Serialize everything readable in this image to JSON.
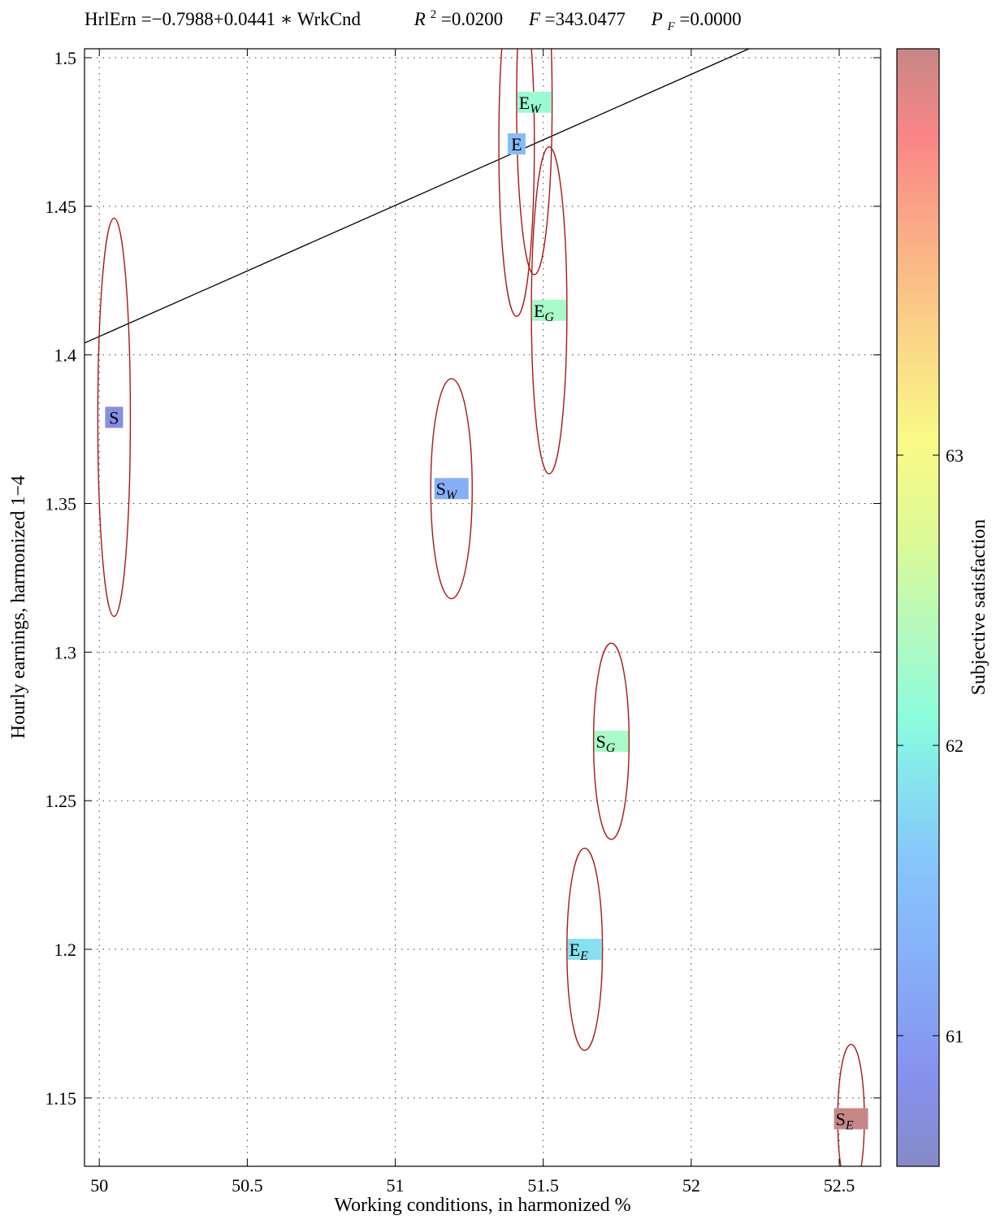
{
  "chart_data": {
    "type": "scatter",
    "title": "HrlErn =−0.7988+0.0441 ∗ WrkCnd        R² =0.0200    F =343.0477    P_F =0.0000",
    "title_parts": {
      "equation": "HrlErn =−0.7988+0.0441 ∗ WrkCnd",
      "r2_symbol": "R",
      "r2_sup": "2",
      "r2_value": " =0.0200",
      "f_symbol": "F",
      "f_value": " =343.0477",
      "pf_symbol": "P",
      "pf_sub": "F",
      "pf_value": " =0.0000"
    },
    "xlabel": "Working conditions, in harmonized %",
    "ylabel": "Hourly earnings, harmonized 1−4",
    "colorbar_label": "Subjective satisfaction",
    "xlim": [
      49.95,
      52.64
    ],
    "ylim": [
      1.127,
      1.503
    ],
    "x_ticks": [
      50,
      50.5,
      51,
      51.5,
      52,
      52.5
    ],
    "x_tick_labels": [
      "50",
      "50.5",
      "51",
      "51.5",
      "52",
      "52.5"
    ],
    "y_ticks": [
      1.15,
      1.2,
      1.25,
      1.3,
      1.35,
      1.4,
      1.45,
      1.5
    ],
    "y_tick_labels": [
      "1.15",
      "1.2",
      "1.25",
      "1.3",
      "1.35",
      "1.4",
      "1.45",
      "1.5"
    ],
    "colorbar_lim": [
      60.55,
      64.4
    ],
    "colorbar_ticks": [
      61,
      62,
      63
    ],
    "colorbar_tick_labels": [
      "61",
      "62",
      "63"
    ],
    "grid": true,
    "regression_line": {
      "intercept": -0.7988,
      "slope": 0.0441
    },
    "points": [
      {
        "base": "S",
        "sub": "",
        "x": 50.05,
        "y": 1.379,
        "satisfaction": 60.75,
        "ellipse": {
          "rx": 0.055,
          "ry": 0.067
        }
      },
      {
        "base": "S",
        "sub": "W",
        "x": 51.19,
        "y": 1.355,
        "satisfaction": 61.25,
        "ellipse": {
          "rx": 0.07,
          "ry": 0.037
        }
      },
      {
        "base": "E",
        "sub": "",
        "x": 51.41,
        "y": 1.471,
        "satisfaction": 61.45,
        "ellipse": {
          "rx": 0.06,
          "ry": 0.058
        }
      },
      {
        "base": "E",
        "sub": "W",
        "x": 51.47,
        "y": 1.485,
        "satisfaction": 62.2,
        "ellipse": {
          "rx": 0.06,
          "ry": 0.058
        }
      },
      {
        "base": "E",
        "sub": "G",
        "x": 51.52,
        "y": 1.415,
        "satisfaction": 62.3,
        "ellipse": {
          "rx": 0.06,
          "ry": 0.055
        }
      },
      {
        "base": "S",
        "sub": "G",
        "x": 51.73,
        "y": 1.27,
        "satisfaction": 62.3,
        "ellipse": {
          "rx": 0.06,
          "ry": 0.033
        }
      },
      {
        "base": "E",
        "sub": "E",
        "x": 51.64,
        "y": 1.2,
        "satisfaction": 61.85,
        "ellipse": {
          "rx": 0.06,
          "ry": 0.034
        }
      },
      {
        "base": "S",
        "sub": "E",
        "x": 52.54,
        "y": 1.143,
        "satisfaction": 64.4,
        "ellipse": {
          "rx": 0.045,
          "ry": 0.025
        }
      }
    ]
  }
}
